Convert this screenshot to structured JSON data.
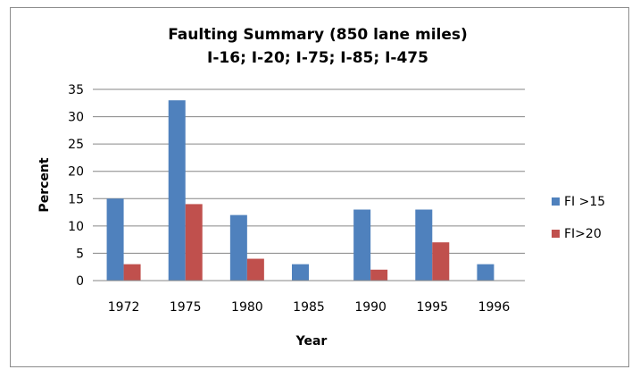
{
  "chart_data": {
    "type": "bar",
    "title": "Faulting Summary (850 lane miles)",
    "subtitle": "I-16; I-20; I-75; I-85; I-475",
    "xlabel": "Year",
    "ylabel": "Percent",
    "categories": [
      "1972",
      "1975",
      "1980",
      "1985",
      "1990",
      "1995",
      "1996"
    ],
    "series": [
      {
        "name": "FI >15",
        "color": "#4f81bd",
        "values": [
          15,
          33,
          12,
          3,
          13,
          13,
          3
        ]
      },
      {
        "name": "FI>20",
        "color": "#c0504d",
        "values": [
          3,
          14,
          4,
          0,
          2,
          7,
          0
        ]
      }
    ],
    "ylim": [
      0,
      35
    ],
    "yticks": [
      0,
      5,
      10,
      15,
      20,
      25,
      30,
      35
    ],
    "grid": true,
    "legend": "right"
  }
}
